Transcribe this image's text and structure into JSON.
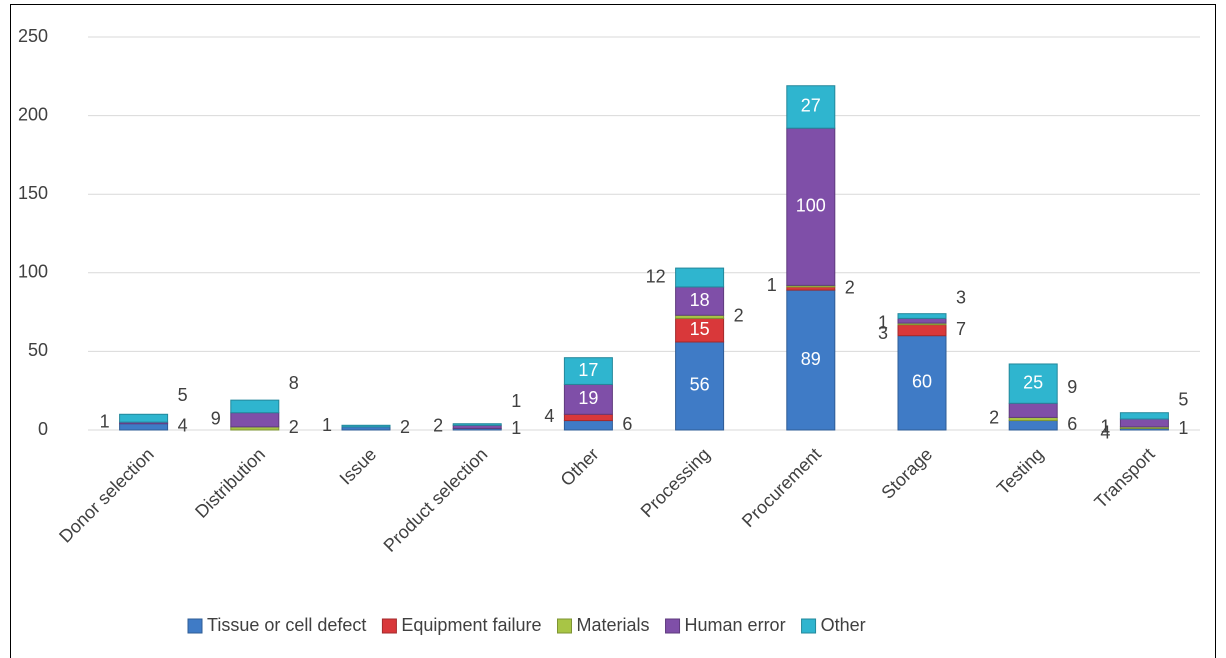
{
  "chart_data": {
    "type": "stacked-bar",
    "categories": [
      "Donor selection",
      "Distribution",
      "Issue",
      "Product selection",
      "Other",
      "Processing",
      "Procurement",
      "Storage",
      "Testing",
      "Transport"
    ],
    "series": [
      {
        "name": "Tissue or cell defect",
        "color": "#3f7bc6",
        "values": [
          4,
          null,
          2,
          1,
          6,
          56,
          89,
          60,
          6,
          1
        ]
      },
      {
        "name": "Equipment failure",
        "color": "#d9383a",
        "values": [
          null,
          null,
          null,
          null,
          4,
          15,
          2,
          7,
          null,
          null
        ]
      },
      {
        "name": "Materials",
        "color": "#a8c545",
        "values": [
          null,
          2,
          null,
          null,
          null,
          2,
          1,
          1,
          2,
          1
        ]
      },
      {
        "name": "Human error",
        "color": "#7f4fa8",
        "values": [
          1,
          9,
          null,
          2,
          19,
          18,
          100,
          3,
          9,
          5
        ]
      },
      {
        "name": "Other",
        "color": "#2fb5cf",
        "values": [
          5,
          8,
          1,
          1,
          17,
          12,
          27,
          3,
          25,
          4
        ]
      }
    ],
    "ylim": [
      0,
      250
    ],
    "yticks": [
      0,
      50,
      100,
      150,
      200,
      250
    ],
    "grid": true,
    "legend": "bottom"
  }
}
